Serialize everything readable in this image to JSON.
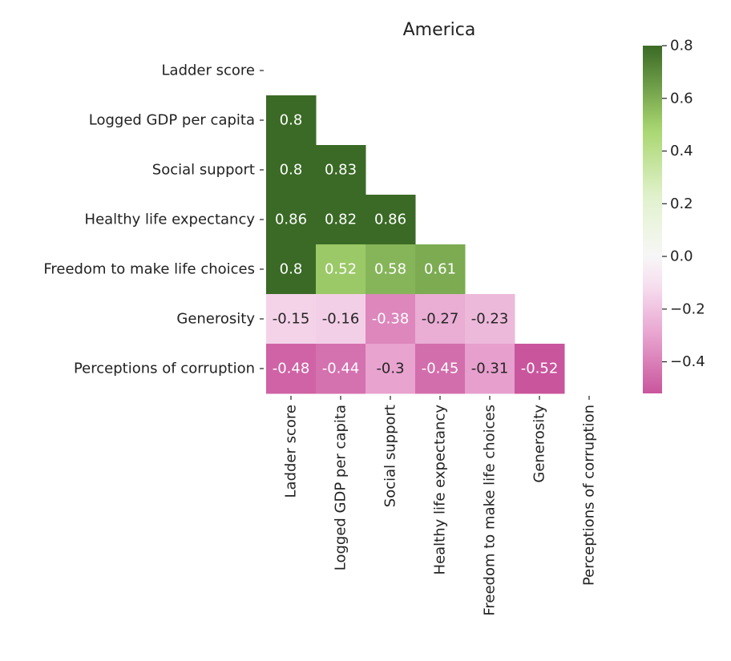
{
  "chart_data": {
    "type": "heatmap",
    "title": "America",
    "labels": [
      "Ladder score",
      "Logged GDP per capita",
      "Social support",
      "Healthy life expectancy",
      "Freedom to make life choices",
      "Generosity",
      "Perceptions of corruption"
    ],
    "mask": "lower-triangle (diagonal and above hidden)",
    "cells": [
      {
        "row": 1,
        "col": 0,
        "value": 0.8,
        "label": "0.8"
      },
      {
        "row": 2,
        "col": 0,
        "value": 0.8,
        "label": "0.8"
      },
      {
        "row": 2,
        "col": 1,
        "value": 0.83,
        "label": "0.83"
      },
      {
        "row": 3,
        "col": 0,
        "value": 0.86,
        "label": "0.86"
      },
      {
        "row": 3,
        "col": 1,
        "value": 0.82,
        "label": "0.82"
      },
      {
        "row": 3,
        "col": 2,
        "value": 0.86,
        "label": "0.86"
      },
      {
        "row": 4,
        "col": 0,
        "value": 0.8,
        "label": "0.8"
      },
      {
        "row": 4,
        "col": 1,
        "value": 0.52,
        "label": "0.52"
      },
      {
        "row": 4,
        "col": 2,
        "value": 0.58,
        "label": "0.58"
      },
      {
        "row": 4,
        "col": 3,
        "value": 0.61,
        "label": "0.61"
      },
      {
        "row": 5,
        "col": 0,
        "value": -0.15,
        "label": "-0.15"
      },
      {
        "row": 5,
        "col": 1,
        "value": -0.16,
        "label": "-0.16"
      },
      {
        "row": 5,
        "col": 2,
        "value": -0.38,
        "label": "-0.38"
      },
      {
        "row": 5,
        "col": 3,
        "value": -0.27,
        "label": "-0.27"
      },
      {
        "row": 5,
        "col": 4,
        "value": -0.23,
        "label": "-0.23"
      },
      {
        "row": 6,
        "col": 0,
        "value": -0.48,
        "label": "-0.48"
      },
      {
        "row": 6,
        "col": 1,
        "value": -0.44,
        "label": "-0.44"
      },
      {
        "row": 6,
        "col": 2,
        "value": -0.3,
        "label": "-0.3"
      },
      {
        "row": 6,
        "col": 3,
        "value": -0.45,
        "label": "-0.45"
      },
      {
        "row": 6,
        "col": 4,
        "value": -0.31,
        "label": "-0.31"
      },
      {
        "row": 6,
        "col": 5,
        "value": -0.52,
        "label": "-0.52"
      }
    ],
    "colormap": "PiYG",
    "colorbar": {
      "vmin": -0.52,
      "vmax": 0.8,
      "center": 0.0,
      "ticks": [
        {
          "value": 0.8,
          "label": "0.8"
        },
        {
          "value": 0.6,
          "label": "0.6"
        },
        {
          "value": 0.4,
          "label": "0.4"
        },
        {
          "value": 0.2,
          "label": "0.2"
        },
        {
          "value": 0.0,
          "label": "0.0"
        },
        {
          "value": -0.2,
          "label": "−0.2"
        },
        {
          "value": -0.4,
          "label": "−0.4"
        }
      ]
    },
    "colors": {
      "neg_end": "#c9559c",
      "neg_mid": "#e8a3cf",
      "neg_light": "#f6dcee",
      "neutral": "#f7f7f7",
      "pos_light": "#e2f2ce",
      "pos_mid": "#a9d770",
      "pos_end": "#3a6a25"
    }
  }
}
